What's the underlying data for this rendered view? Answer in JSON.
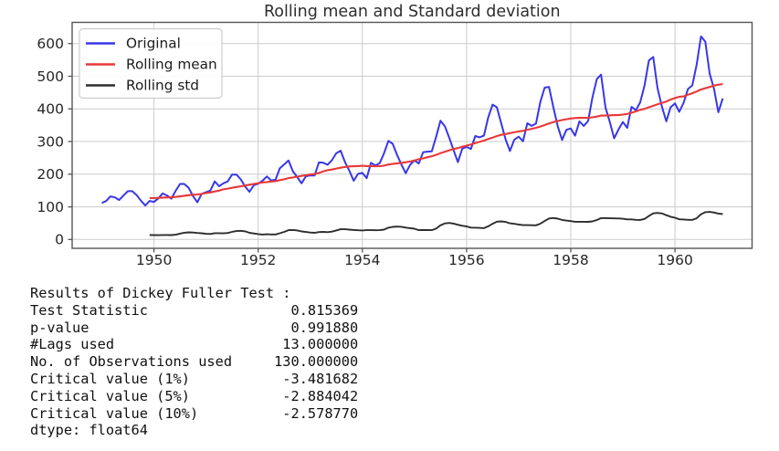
{
  "chart_data": {
    "type": "line",
    "title": "Rolling mean and Standard deviation",
    "x_start_year": 1949,
    "months_per_step": 12,
    "rolling_window": 12,
    "values": [
      112,
      118,
      132,
      129,
      121,
      135,
      148,
      148,
      136,
      119,
      104,
      118,
      115,
      126,
      141,
      135,
      125,
      149,
      170,
      170,
      158,
      133,
      114,
      140,
      145,
      150,
      178,
      163,
      172,
      178,
      199,
      199,
      184,
      162,
      146,
      166,
      171,
      180,
      193,
      181,
      183,
      218,
      230,
      242,
      209,
      191,
      172,
      194,
      196,
      196,
      236,
      235,
      229,
      243,
      264,
      272,
      237,
      211,
      180,
      201,
      204,
      188,
      235,
      227,
      234,
      264,
      302,
      293,
      259,
      229,
      203,
      229,
      242,
      233,
      267,
      269,
      270,
      315,
      364,
      347,
      312,
      274,
      237,
      278,
      284,
      277,
      317,
      313,
      318,
      374,
      413,
      405,
      355,
      306,
      271,
      306,
      315,
      301,
      356,
      348,
      355,
      422,
      465,
      467,
      404,
      347,
      305,
      336,
      340,
      318,
      362,
      348,
      363,
      435,
      491,
      505,
      404,
      359,
      310,
      337,
      360,
      342,
      406,
      396,
      420,
      472,
      548,
      559,
      463,
      407,
      362,
      405,
      417,
      391,
      419,
      461,
      472,
      535,
      622,
      606,
      508,
      461,
      390,
      432
    ],
    "series": [
      {
        "name": "Original",
        "source": "raw",
        "color": "#3737e8",
        "width": 2.0
      },
      {
        "name": "Rolling mean",
        "source": "rolling_mean",
        "color": "#e83838",
        "width": 2.1
      },
      {
        "name": "Rolling std",
        "source": "rolling_std",
        "color": "#2d2d2d",
        "width": 1.9
      }
    ],
    "x_ticks": [
      1950,
      1952,
      1954,
      1956,
      1958,
      1960
    ],
    "y_ticks": [
      0,
      100,
      200,
      300,
      400,
      500,
      600
    ],
    "xlim": [
      1948.43,
      1961.48
    ],
    "ylim": [
      -27,
      665
    ],
    "grid": true,
    "legend_position": "upper left",
    "colors": {
      "grid": "#cccccc",
      "spine": "#555555",
      "tick_label": "#262626",
      "title": "#2e2e2e",
      "legend_border": "#cccccc",
      "legend_bg": "#ffffff"
    }
  },
  "dickey_fuller": {
    "header": "Results of Dickey Fuller Test :",
    "rows": [
      {
        "label": "Test Statistic",
        "value": "0.815369"
      },
      {
        "label": "p-value",
        "value": "0.991880"
      },
      {
        "label": "#Lags used",
        "value": "13.000000"
      },
      {
        "label": "No. of Observations used",
        "value": "130.000000"
      },
      {
        "label": "Critical value (1%)",
        "value": "-3.481682"
      },
      {
        "label": "Critical value (5%)",
        "value": "-2.884042"
      },
      {
        "label": "Critical value (10%)",
        "value": "-2.578770"
      }
    ],
    "footer": "dtype: float64",
    "label_col_width": 24,
    "line_width_chars": 39
  }
}
